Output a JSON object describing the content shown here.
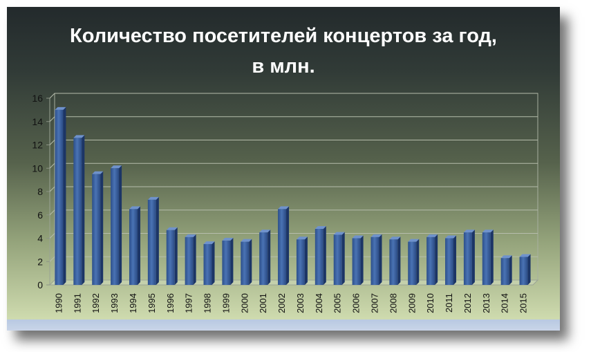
{
  "chart_data": {
    "type": "bar",
    "title_lines": [
      "Количество посетителей концертов за год,",
      "в млн."
    ],
    "categories": [
      "1990",
      "1991",
      "1992",
      "1993",
      "1994",
      "1995",
      "1996",
      "1997",
      "1998",
      "1999",
      "2000",
      "2001",
      "2002",
      "2003",
      "2004",
      "2005",
      "2006",
      "2007",
      "2008",
      "2009",
      "2010",
      "2011",
      "2012",
      "2013",
      "2014",
      "2015"
    ],
    "values": [
      15,
      12.6,
      9.5,
      10,
      6.5,
      7.3,
      4.7,
      4.1,
      3.5,
      3.8,
      3.7,
      4.5,
      6.5,
      3.9,
      4.8,
      4.3,
      4.0,
      4.1,
      3.9,
      3.7,
      4.1,
      4.0,
      4.5,
      4.5,
      2.3,
      2.4
    ],
    "yticks": [
      "0",
      "2",
      "4",
      "6",
      "8",
      "10",
      "12",
      "14",
      "16"
    ],
    "ylim": [
      0,
      16
    ],
    "grid": true,
    "legend": "none",
    "bar_color": "#3a5f9e"
  }
}
